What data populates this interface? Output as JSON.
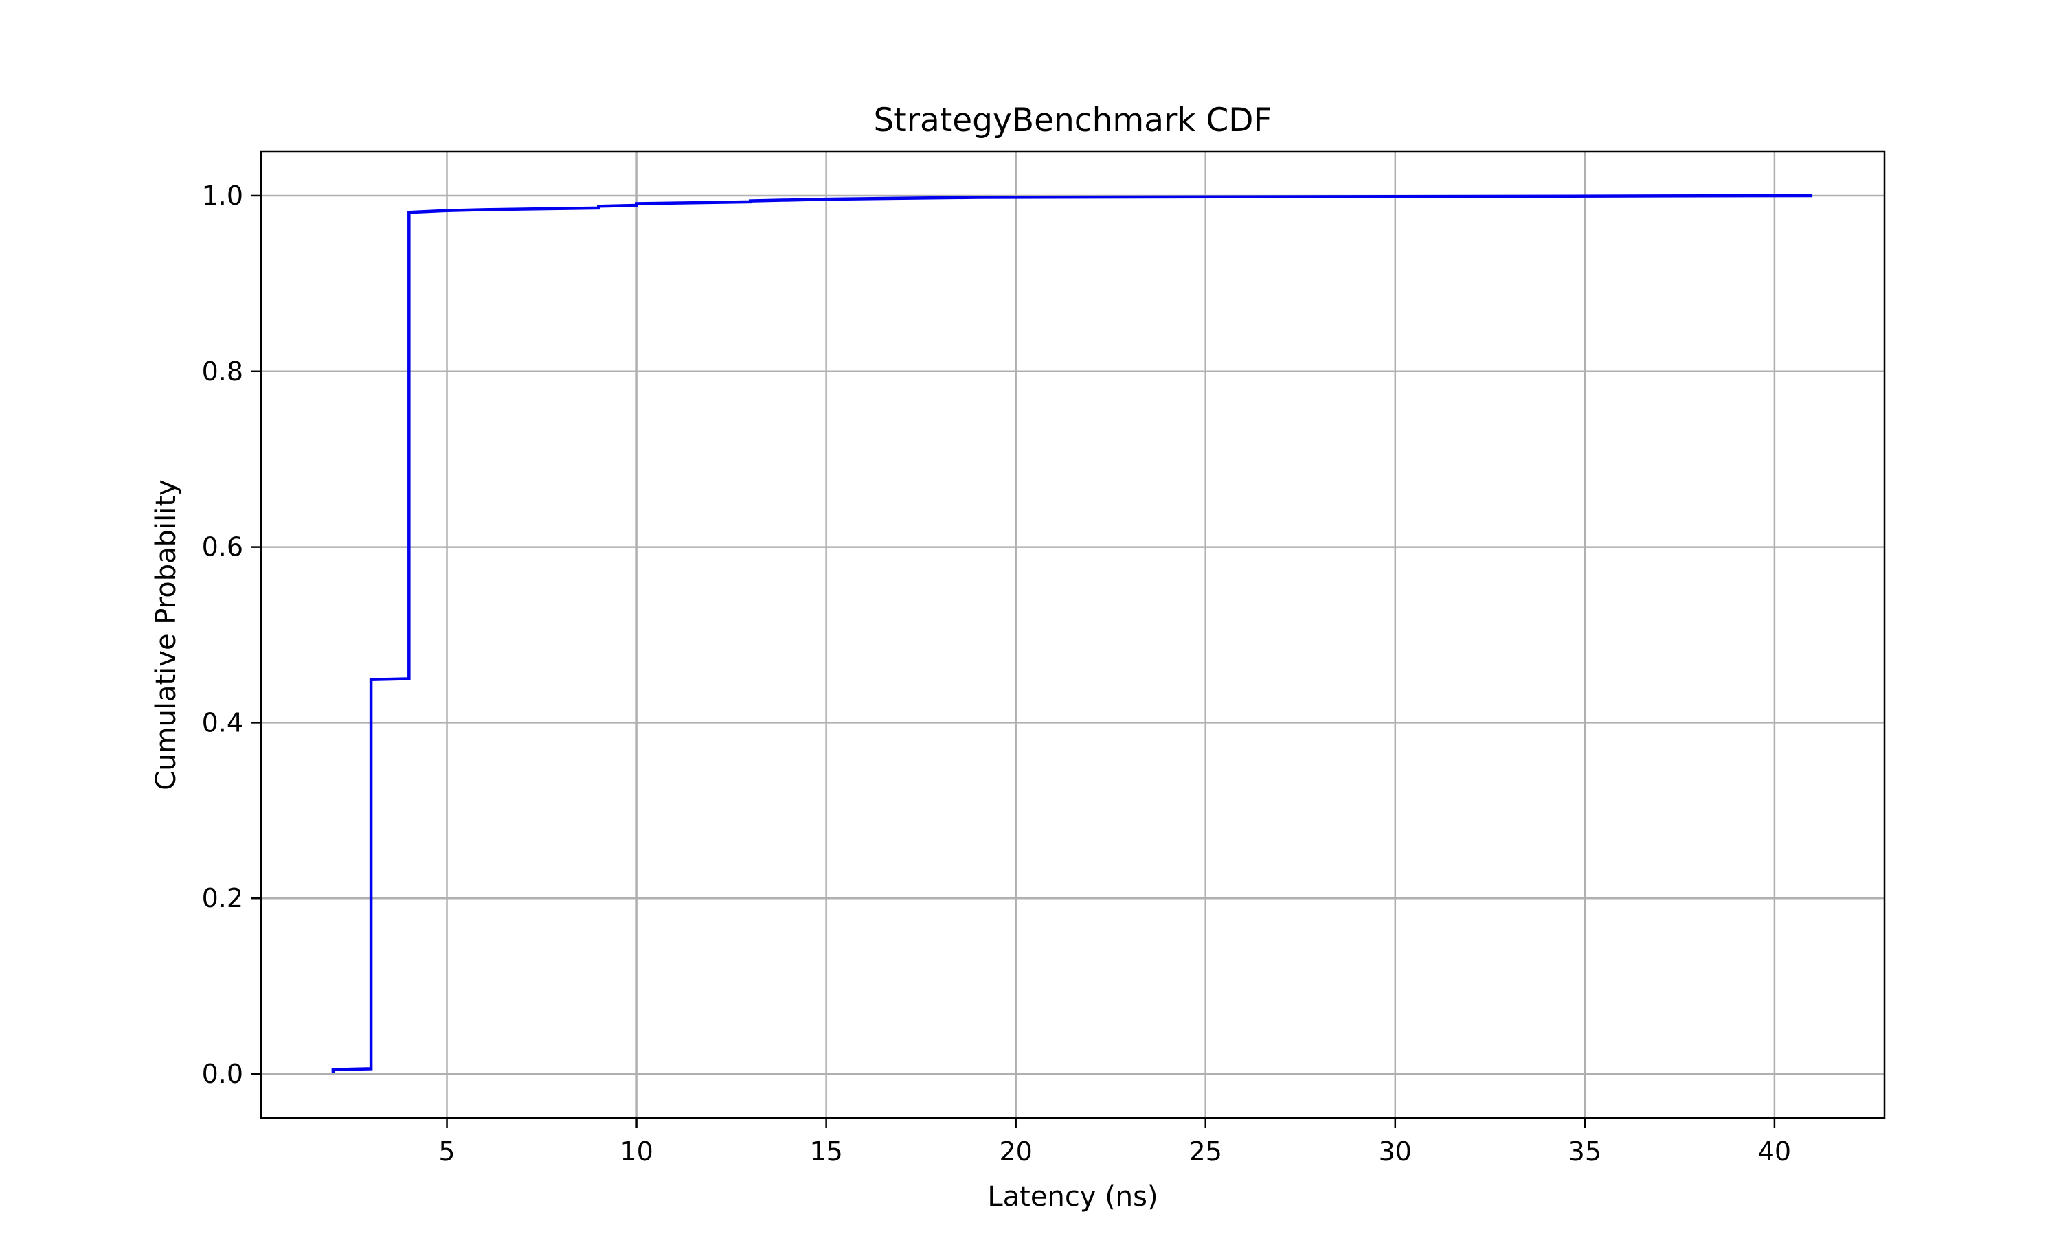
{
  "chart_data": {
    "type": "line",
    "title": "StrategyBenchmark CDF",
    "xlabel": "Latency (ns)",
    "ylabel": "Cumulative Probability",
    "xlim": [
      0.1,
      42.9
    ],
    "ylim": [
      -0.05,
      1.05
    ],
    "xticks": [
      5,
      10,
      15,
      20,
      25,
      30,
      35,
      40
    ],
    "xtick_labels": [
      "5",
      "10",
      "15",
      "20",
      "25",
      "30",
      "35",
      "40"
    ],
    "yticks": [
      0.0,
      0.2,
      0.4,
      0.6,
      0.8,
      1.0
    ],
    "ytick_labels": [
      "0.0",
      "0.2",
      "0.4",
      "0.6",
      "0.8",
      "1.0"
    ],
    "grid": true,
    "line_color": "#0000ee",
    "grid_color": "#b0b0b0",
    "series": [
      {
        "x": [
          2,
          2,
          3,
          3,
          4,
          4,
          5,
          6,
          9,
          9,
          10,
          10,
          13,
          13,
          15,
          19,
          41
        ],
        "y": [
          0.001,
          0.005,
          0.006,
          0.449,
          0.45,
          0.981,
          0.983,
          0.984,
          0.986,
          0.988,
          0.989,
          0.991,
          0.993,
          0.994,
          0.996,
          0.998,
          1.0
        ]
      }
    ]
  }
}
